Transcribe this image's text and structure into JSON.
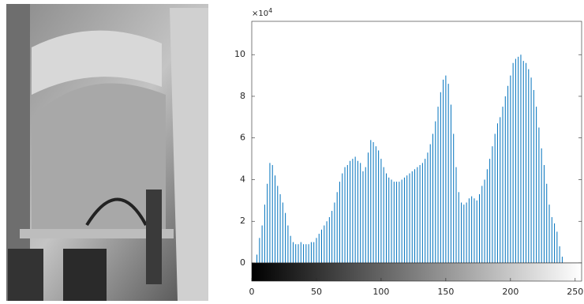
{
  "chart_data": {
    "type": "histogram",
    "y_exponent_base": "×10",
    "y_exponent": "4",
    "color": "#0072bd",
    "xlim": [
      0,
      255
    ],
    "xticks": [
      0,
      50,
      100,
      150,
      200,
      250
    ],
    "ylim": [
      0,
      116000
    ],
    "yticks": [
      {
        "value": 0,
        "label": "0"
      },
      {
        "value": 20000,
        "label": "2"
      },
      {
        "value": 40000,
        "label": "4"
      },
      {
        "value": 60000,
        "label": "6"
      },
      {
        "value": 80000,
        "label": "8"
      },
      {
        "value": 100000,
        "label": "10"
      }
    ],
    "colorbar": true,
    "x": [
      0,
      2,
      4,
      6,
      8,
      10,
      12,
      14,
      16,
      18,
      20,
      22,
      24,
      26,
      28,
      30,
      32,
      34,
      36,
      38,
      40,
      42,
      44,
      46,
      48,
      50,
      52,
      54,
      56,
      58,
      60,
      62,
      64,
      66,
      68,
      70,
      72,
      74,
      76,
      78,
      80,
      82,
      84,
      86,
      88,
      90,
      92,
      94,
      96,
      98,
      100,
      102,
      104,
      106,
      108,
      110,
      112,
      114,
      116,
      118,
      120,
      122,
      124,
      126,
      128,
      130,
      132,
      134,
      136,
      138,
      140,
      142,
      144,
      146,
      148,
      150,
      152,
      154,
      156,
      158,
      160,
      162,
      164,
      166,
      168,
      170,
      172,
      174,
      176,
      178,
      180,
      182,
      184,
      186,
      188,
      190,
      192,
      194,
      196,
      198,
      200,
      202,
      204,
      206,
      208,
      210,
      212,
      214,
      216,
      218,
      220,
      222,
      224,
      226,
      228,
      230,
      232,
      234,
      236,
      238,
      240,
      242,
      244,
      246,
      248,
      250,
      252,
      254
    ],
    "values": [
      0,
      0,
      4000,
      12000,
      18000,
      28000,
      38000,
      48000,
      47000,
      42000,
      37000,
      33000,
      29000,
      24000,
      18000,
      13000,
      10000,
      9000,
      9000,
      10000,
      9000,
      9000,
      9000,
      10000,
      10000,
      12000,
      14000,
      16000,
      18000,
      20000,
      22000,
      25000,
      29000,
      34000,
      39000,
      43000,
      46000,
      47000,
      49000,
      50000,
      51000,
      49000,
      48000,
      44000,
      46000,
      53000,
      59000,
      58000,
      56000,
      54000,
      50000,
      46000,
      43000,
      41000,
      40000,
      39000,
      39000,
      39000,
      40000,
      41000,
      42000,
      43000,
      44000,
      45000,
      46000,
      47000,
      48000,
      50000,
      53000,
      57000,
      62000,
      68000,
      75000,
      82000,
      88000,
      90000,
      86000,
      76000,
      62000,
      46000,
      34000,
      29000,
      28000,
      29000,
      31000,
      32000,
      31000,
      30000,
      33000,
      37000,
      40000,
      45000,
      50000,
      56000,
      62000,
      67000,
      70000,
      75000,
      80000,
      85000,
      90000,
      96000,
      98000,
      99000,
      100000,
      97000,
      96000,
      93000,
      89000,
      83000,
      75000,
      65000,
      55000,
      47000,
      38000,
      28000,
      22000,
      19000,
      15000,
      8000,
      3000,
      0,
      0,
      0,
      0,
      0,
      0,
      0
    ]
  }
}
